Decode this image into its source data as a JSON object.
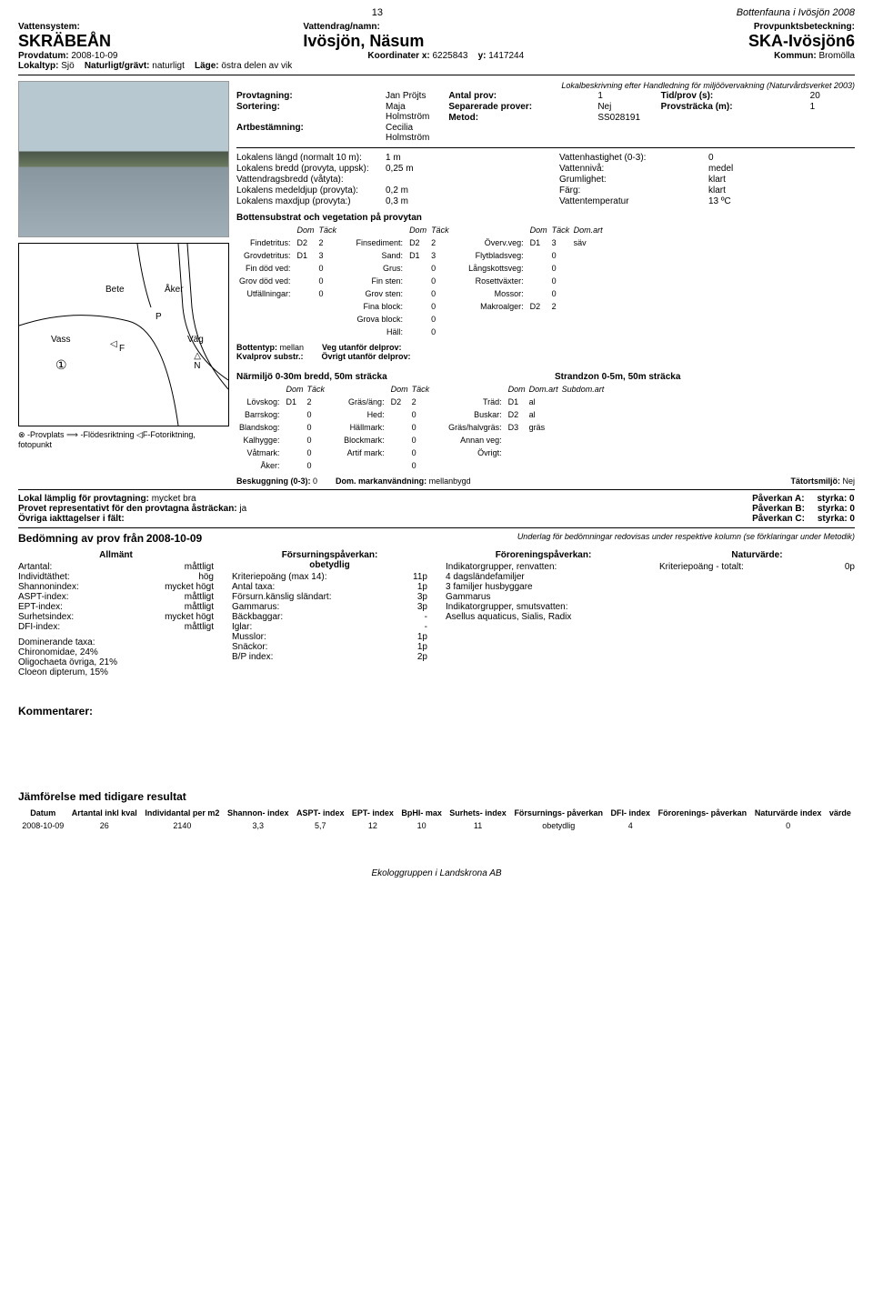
{
  "header": {
    "page": "13",
    "doc_title": "Bottenfauna i Ivösjön 2008",
    "vattensystem_lbl": "Vattensystem:",
    "vattensystem": "SKRÄBEÅN",
    "vattendrag_lbl": "Vattendrag/namn:",
    "vattendrag": "Ivösjön, Näsum",
    "provpunkt_lbl": "Provpunktsbeteckning:",
    "provpunkt": "SKA-Ivösjön6",
    "provdatum_lbl": "Provdatum:",
    "provdatum": "2008-10-09",
    "koord_lbl": "Koordinater x:",
    "koord_x": "6225843",
    "koord_y_lbl": "y:",
    "koord_y": "1417244",
    "kommun_lbl": "Kommun:",
    "kommun": "Bromölla",
    "lokaltyp_lbl": "Lokaltyp:",
    "lokaltyp": "Sjö",
    "natur_lbl": "Naturligt/grävt:",
    "natur": "naturligt",
    "lage_lbl": "Läge:",
    "lage": "östra delen av vik"
  },
  "sampling": {
    "note": "Lokalbeskrivning efter Handledning för miljöövervakning (Naturvårdsverket 2003)",
    "provtagning_lbl": "Provtagning:",
    "provtagning": "Jan Pröjts",
    "sortering_lbl": "Sortering:",
    "sortering": "Maja Holmström",
    "artbest_lbl": "Artbestämning:",
    "artbest": "Cecilia Holmström",
    "antal_lbl": "Antal prov:",
    "antal": "1",
    "sep_lbl": "Separerade prover:",
    "sep": "Nej",
    "metod_lbl": "Metod:",
    "metod": "SS028191",
    "tid_lbl": "Tid/prov (s):",
    "tid": "20",
    "prov_lbl": "Provsträcka (m):",
    "prov": "1"
  },
  "lokal": {
    "langd_lbl": "Lokalens längd (normalt 10 m):",
    "langd": "1 m",
    "bredd_lbl": "Lokalens bredd (provyta, uppsk):",
    "bredd": "0,25 m",
    "vdbredd_lbl": "Vattendragsbredd (våtyta):",
    "vdbredd": "",
    "medel_lbl": "Lokalens medeldjup (provyta):",
    "medel": "0,2 m",
    "max_lbl": "Lokalens maxdjup (provyta:)",
    "max": "0,3 m",
    "hast_lbl": "Vattenhastighet (0-3):",
    "hast": "0",
    "niva_lbl": "Vattennivå:",
    "niva": "medel",
    "grum_lbl": "Grumlighet:",
    "grum": "klart",
    "farg_lbl": "Färg:",
    "farg": "klart",
    "temp_lbl": "Vattentemperatur",
    "temp": "13 ºC"
  },
  "substrat": {
    "title": "Bottensubstrat och vegetation på provytan",
    "dom_lbl": "Dom",
    "tack_lbl": "Täck",
    "domart_lbl": "Dom.art",
    "rows1": [
      [
        "Findetritus:",
        "D2",
        "2"
      ],
      [
        "Grovdetritus:",
        "D1",
        "3"
      ],
      [
        "Fin död ved:",
        "",
        "0"
      ],
      [
        "Grov död ved:",
        "",
        "0"
      ],
      [
        "Utfällningar:",
        "",
        "0"
      ]
    ],
    "rows2": [
      [
        "Finsediment:",
        "D2",
        "2"
      ],
      [
        "Sand:",
        "D1",
        "3"
      ],
      [
        "Grus:",
        "",
        "0"
      ],
      [
        "Fin sten:",
        "",
        "0"
      ],
      [
        "Grov sten:",
        "",
        "0"
      ],
      [
        "Fina block:",
        "",
        "0"
      ],
      [
        "Grova block:",
        "",
        "0"
      ],
      [
        "Häll:",
        "",
        "0"
      ]
    ],
    "rows3": [
      [
        "Överv.veg:",
        "D1",
        "3",
        "säv"
      ],
      [
        "Flytbladsveg:",
        "",
        "0",
        ""
      ],
      [
        "Långskottsveg:",
        "",
        "0",
        ""
      ],
      [
        "Rosettväxter:",
        "",
        "0",
        ""
      ],
      [
        "Mossor:",
        "",
        "0",
        ""
      ],
      [
        "Makroalger:",
        "D2",
        "2",
        ""
      ]
    ],
    "bottentyp_lbl": "Bottentyp:",
    "bottentyp": "mellan",
    "kvalprov_lbl": "Kvalprov substr.:",
    "veg_lbl": "Veg utanför delprov:",
    "ovrigt_lbl": "Övrigt utanför delprov:"
  },
  "narmiljo": {
    "title1": "Närmiljö 0-30m bredd, 50m sträcka",
    "title2": "Strandzon 0-5m, 50m sträcka",
    "dom_lbl": "Dom",
    "tack_lbl": "Täck",
    "rows1": [
      [
        "Lövskog:",
        "D1",
        "2"
      ],
      [
        "Barrskog:",
        "",
        "0"
      ],
      [
        "Blandskog:",
        "",
        "0"
      ],
      [
        "Kalhygge:",
        "",
        "0"
      ],
      [
        "Våtmark:",
        "",
        "0"
      ],
      [
        "Åker:",
        "",
        "0"
      ]
    ],
    "rows2": [
      [
        "Gräs/äng:",
        "D2",
        "2"
      ],
      [
        "Hed:",
        "",
        "0"
      ],
      [
        "Hällmark:",
        "",
        "0"
      ],
      [
        "Blockmark:",
        "",
        "0"
      ],
      [
        "Artif mark:",
        "",
        "0"
      ],
      [
        "",
        "",
        "0"
      ]
    ],
    "strand_hdr": [
      "Dom",
      "Dom.art",
      "Subdom.art"
    ],
    "strand": [
      [
        "Träd:",
        "D1",
        "al",
        ""
      ],
      [
        "Buskar:",
        "D2",
        "al",
        ""
      ],
      [
        "Gräs/halvgräs:",
        "D3",
        "gräs",
        ""
      ],
      [
        "Annan veg:",
        "",
        "",
        ""
      ],
      [
        "Övrigt:",
        "",
        "",
        ""
      ]
    ],
    "besk_lbl": "Beskuggning (0-3):",
    "besk": "0",
    "mark_lbl": "Dom. markanvändning:",
    "mark": "mellanbygd",
    "tat_lbl": "Tätortsmiljö:",
    "tat": "Nej"
  },
  "map": {
    "bete": "Bete",
    "aker": "Åker",
    "vass": "Vass",
    "vag": "Väg",
    "p": "P",
    "f": "F",
    "n": "N",
    "legend": "⊗ -Provplats   ⟹ -Flödesriktning   ◁F-Fotoriktning, fotopunkt"
  },
  "suitability": {
    "lamplig_lbl": "Lokal lämplig för provtagning:",
    "lamplig": "mycket bra",
    "rep_lbl": "Provet representativt för den provtagna åsträckan:",
    "rep": "ja",
    "ovr_lbl": "Övriga iakttagelser i fält:",
    "pa_lbl": "Påverkan A:",
    "pb_lbl": "Påverkan B:",
    "pc_lbl": "Påverkan C:",
    "styrka": "styrka: 0"
  },
  "assess": {
    "title": "Bedömning av prov från",
    "date": "2008-10-09",
    "note": "Underlag för bedömningar redovisas under respektive kolumn (se förklaringar under Metodik)",
    "col1_title": "Allmänt",
    "col2_title": "Försurningspåverkan:",
    "col2_sub": "obetydlig",
    "col3_title": "Föroreningspåverkan:",
    "col4_title": "Naturvärde:",
    "allmant": [
      [
        "Artantal:",
        "måttligt"
      ],
      [
        "Individtäthet:",
        "hög"
      ],
      [
        "Shannonindex:",
        "mycket högt"
      ],
      [
        "ASPT-index:",
        "måttligt"
      ],
      [
        "EPT-index:",
        "måttligt"
      ],
      [
        "Surhetsindex:",
        "mycket högt"
      ],
      [
        "DFI-index:",
        "måttligt"
      ]
    ],
    "dom_lbl": "Dominerande taxa:",
    "dom": [
      "Chironomidae, 24%",
      "Oligochaeta övriga, 21%",
      "Cloeon dipterum, 15%"
    ],
    "forsur": [
      [
        "Kriteriepoäng (max 14):",
        "11p"
      ],
      [
        "Antal taxa:",
        "1p"
      ],
      [
        "Försurn.känslig sländart:",
        "3p"
      ],
      [
        "Gammarus:",
        "3p"
      ],
      [
        "Bäckbaggar:",
        "-"
      ],
      [
        "Iglar:",
        "-"
      ],
      [
        "Musslor:",
        "1p"
      ],
      [
        "Snäckor:",
        "1p"
      ],
      [
        "B/P index:",
        "2p"
      ]
    ],
    "fororen": [
      "Indikatorgrupper, renvatten:",
      "4 dagsländefamiljer",
      "3 familjer husbyggare",
      "Gammarus",
      "",
      "Indikatorgrupper, smutsvatten:",
      "Asellus aquaticus, Sialis, Radix"
    ],
    "natur": [
      [
        "Kriteriepoäng - totalt:",
        "0p"
      ]
    ]
  },
  "kommentar_lbl": "Kommentarer:",
  "compare": {
    "title": "Jämförelse med tidigare resultat",
    "headers": [
      "Datum",
      "Artantal inkl kval",
      "Individantal per m2",
      "Shannon- index",
      "ASPT- index",
      "EPT- index",
      "BpHI- max",
      "Surhets- index",
      "Försurnings- påverkan",
      "DFI- index",
      "Förorenings- påverkan",
      "Naturvärde index",
      "värde"
    ],
    "row": [
      "2008-10-09",
      "26",
      "2140",
      "3,3",
      "5,7",
      "12",
      "10",
      "11",
      "obetydlig",
      "4",
      "",
      "0",
      ""
    ]
  },
  "footer": "Ekologgruppen i Landskrona AB"
}
